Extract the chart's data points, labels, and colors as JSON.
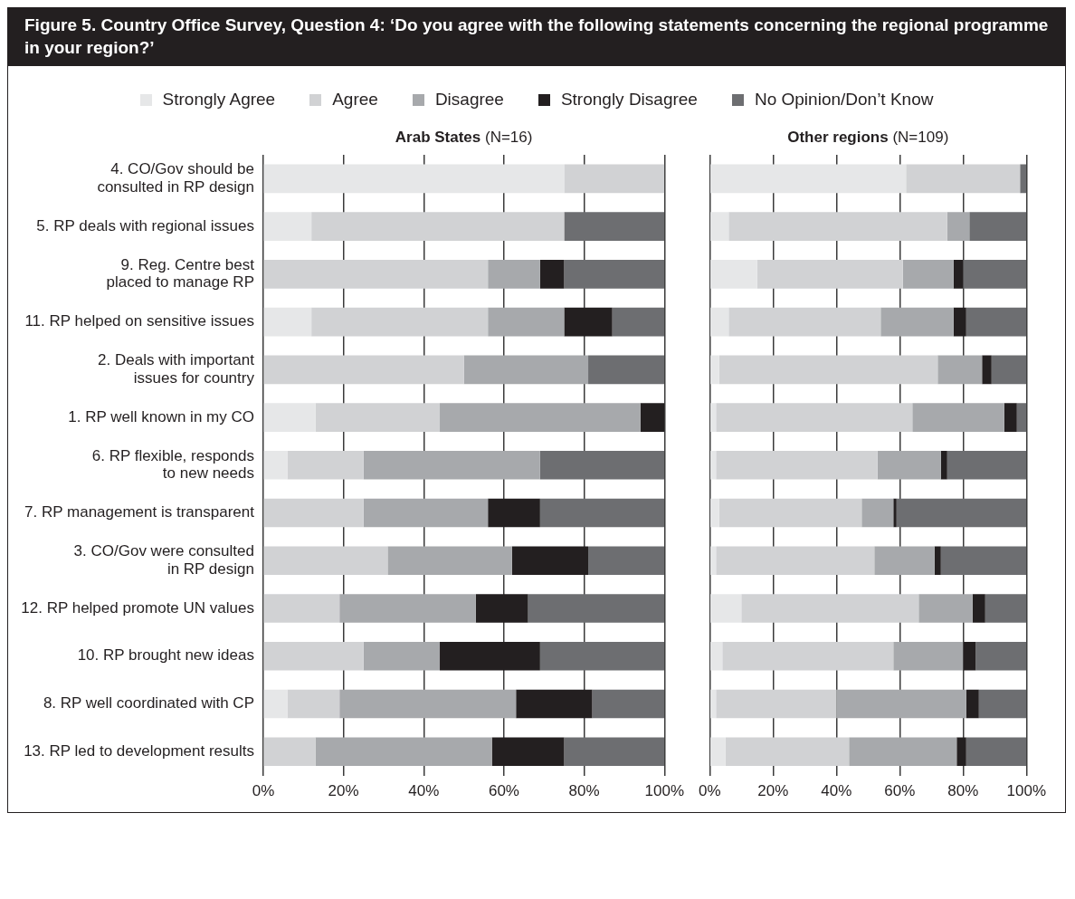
{
  "chart_data": [
    {
      "type": "bar",
      "title": "Figure 5. Country Office Survey, Question 4: ‘Do you agree with the following statements concerning the regional programme in your region?’",
      "subtitle": "Arab States (N=16)",
      "orientation": "horizontal",
      "stacked": true,
      "categories": [
        "4. CO/Gov should be\nconsulted in RP design",
        "5. RP deals with regional issues",
        "9. Reg. Centre best\nplaced to manage RP",
        "11. RP helped on sensitive issues",
        "2. Deals with important\nissues for country",
        "1. RP well known in my CO",
        "6. RP flexible, responds\nto new needs",
        "7. RP management is transparent",
        "3. CO/Gov were consulted\nin RP design",
        "12. RP helped promote UN values",
        "10. RP brought new ideas",
        "8. RP well coordinated with CP",
        "13. RP led to development results"
      ],
      "series": [
        {
          "name": "Strongly Agree",
          "color": "#e6e7e8",
          "values": [
            75,
            12,
            null,
            12,
            null,
            13,
            6,
            null,
            null,
            null,
            null,
            6,
            null
          ]
        },
        {
          "name": "Agree",
          "color": "#d1d2d4",
          "values": [
            25,
            63,
            56,
            44,
            50,
            31,
            19,
            25,
            31,
            19,
            25,
            13,
            13
          ]
        },
        {
          "name": "Disagree",
          "color": "#a7a9ac",
          "values": [
            null,
            null,
            13,
            19,
            31,
            50,
            44,
            31,
            31,
            34,
            19,
            44,
            44
          ]
        },
        {
          "name": "Strongly Disagree",
          "color": "#231f20",
          "values": [
            null,
            null,
            6,
            12,
            null,
            6,
            null,
            13,
            19,
            13,
            25,
            19,
            18
          ]
        },
        {
          "name": "No Opinion/Don’t Know",
          "color": "#6d6e71",
          "values": [
            null,
            25,
            25,
            13,
            19,
            null,
            31,
            31,
            19,
            34,
            31,
            18,
            25
          ]
        }
      ],
      "xlim": [
        0,
        100
      ],
      "xticks": [
        {
          "value": 0,
          "label": "0%"
        },
        {
          "value": 20,
          "label": "20%"
        },
        {
          "value": 40,
          "label": "40%"
        },
        {
          "value": 60,
          "label": "60%"
        },
        {
          "value": 80,
          "label": "80%"
        },
        {
          "value": 100,
          "label": "100%"
        }
      ],
      "grid": "x",
      "legend": "top"
    },
    {
      "type": "bar",
      "subtitle": "Other regions (N=109)",
      "orientation": "horizontal",
      "stacked": true,
      "categories": [
        null,
        null,
        null,
        null,
        null,
        null,
        null,
        null,
        null,
        null,
        null,
        null,
        null
      ],
      "series": [
        {
          "color": "#e6e7e8",
          "values": [
            62,
            6,
            15,
            6,
            3,
            2,
            2,
            3,
            2,
            10,
            4,
            2,
            5
          ]
        },
        {
          "color": "#d1d2d4",
          "values": [
            36,
            69,
            46,
            48,
            69,
            62,
            51,
            45,
            50,
            56,
            54,
            38,
            39
          ]
        },
        {
          "color": "#a7a9ac",
          "values": [
            null,
            7,
            16,
            23,
            14,
            29,
            20,
            10,
            19,
            17,
            22,
            41,
            34
          ]
        },
        {
          "color": "#231f20",
          "values": [
            null,
            null,
            3,
            4,
            3,
            4,
            2,
            1,
            2,
            4,
            4,
            4,
            3
          ]
        },
        {
          "color": "#6d6e71",
          "values": [
            2,
            18,
            20,
            19,
            11,
            3,
            25,
            41,
            27,
            13,
            16,
            15,
            19
          ]
        }
      ],
      "xlim": [
        0,
        100
      ],
      "xticks": [
        {
          "value": 0,
          "label": "0%"
        },
        {
          "value": 20,
          "label": "20%"
        },
        {
          "value": 40,
          "label": "40%"
        },
        {
          "value": 60,
          "label": "60%"
        },
        {
          "value": 80,
          "label": "80%"
        },
        {
          "value": 100,
          "label": "100%"
        }
      ],
      "grid": "x",
      "tick_labels": "x"
    }
  ]
}
